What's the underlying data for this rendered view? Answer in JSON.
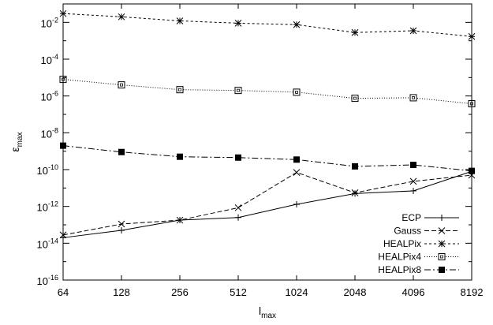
{
  "chart_data": {
    "type": "line",
    "xlabel": "l",
    "xlabel_sub": "max",
    "ylabel": "ε",
    "ylabel_sub": "max",
    "x_scale": "log2",
    "y_scale": "log10",
    "xlim": [
      64,
      8192
    ],
    "ylim": [
      1e-16,
      0.1
    ],
    "x_ticks": [
      {
        "value": 64,
        "label": "64"
      },
      {
        "value": 128,
        "label": "128"
      },
      {
        "value": 256,
        "label": "256"
      },
      {
        "value": 512,
        "label": "512"
      },
      {
        "value": 1024,
        "label": "1024"
      },
      {
        "value": 2048,
        "label": "2048"
      },
      {
        "value": 4096,
        "label": "4096"
      },
      {
        "value": 8192,
        "label": "8192"
      }
    ],
    "y_ticks": [
      {
        "value": 1e-16,
        "base": "10",
        "exp": "-16"
      },
      {
        "value": 1e-14,
        "base": "10",
        "exp": "-14"
      },
      {
        "value": 1e-12,
        "base": "10",
        "exp": "-12"
      },
      {
        "value": 1e-10,
        "base": "10",
        "exp": "-10"
      },
      {
        "value": 1e-08,
        "base": "10",
        "exp": "-8"
      },
      {
        "value": 1e-06,
        "base": "10",
        "exp": "-6"
      },
      {
        "value": 0.0001,
        "base": "10",
        "exp": "-4"
      },
      {
        "value": 0.01,
        "base": "10",
        "exp": "-2"
      }
    ],
    "legend_position": "bottom-right",
    "grid": false,
    "x": [
      64,
      128,
      256,
      512,
      1024,
      2048,
      4096,
      8192
    ],
    "series": [
      {
        "name": "ECP",
        "marker": "plus",
        "dash": "",
        "values": [
          2e-14,
          5e-14,
          1.8e-13,
          2.5e-13,
          1.3e-12,
          5e-12,
          7e-12,
          8e-11
        ]
      },
      {
        "name": "Gauss",
        "marker": "x",
        "dash": "6,3",
        "values": [
          2.8e-14,
          1.1e-13,
          1.8e-13,
          8.5e-13,
          7e-11,
          5.5e-12,
          2.3e-11,
          5e-11
        ]
      },
      {
        "name": "HEALPix",
        "marker": "star",
        "dash": "3,3",
        "values": [
          0.03,
          0.02,
          0.012,
          0.009,
          0.0075,
          0.0028,
          0.0035,
          0.0017
        ]
      },
      {
        "name": "HEALPix4",
        "marker": "square-open",
        "dash": "1,2",
        "values": [
          8e-06,
          4e-06,
          2.2e-06,
          2e-06,
          1.6e-06,
          7.5e-07,
          8e-07,
          3.8e-07
        ]
      },
      {
        "name": "HEALPix8",
        "marker": "square-filled",
        "dash": "8,3,2,3",
        "values": [
          2e-09,
          9e-10,
          5e-10,
          4.5e-10,
          3.5e-10,
          1.5e-10,
          1.8e-10,
          8.5e-11
        ]
      }
    ]
  }
}
